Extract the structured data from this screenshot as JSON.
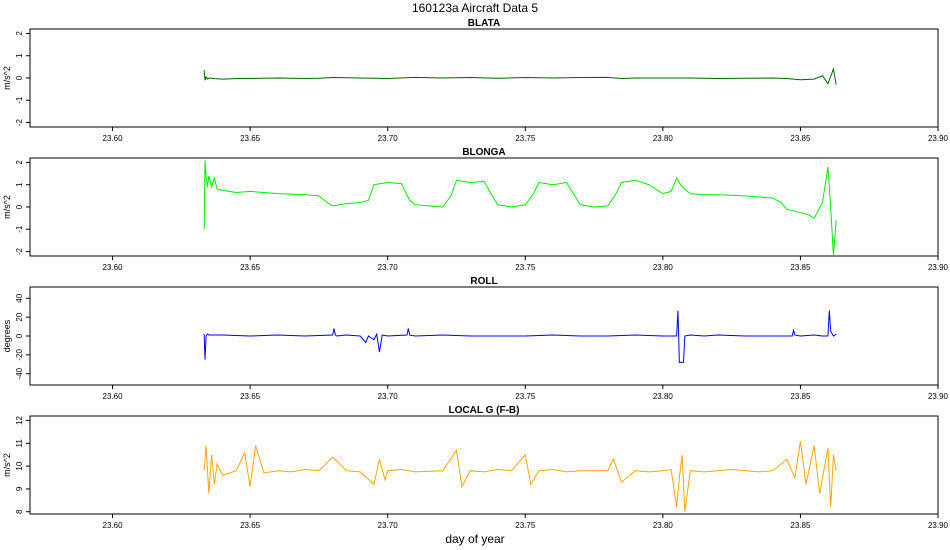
{
  "figure": {
    "title": "160123a   Aircraft Data 5",
    "xlabel": "day of year"
  },
  "chart_data": [
    {
      "type": "line",
      "title": "BLATA",
      "ylabel": "m/s^2",
      "xlim": [
        23.57,
        23.9
      ],
      "ylim": [
        -2.2,
        2.2
      ],
      "xticks": [
        23.6,
        23.65,
        23.7,
        23.75,
        23.8,
        23.85,
        23.9
      ],
      "xtick_labels": [
        "23.60",
        "23.65",
        "23.70",
        "23.75",
        "23.80",
        "23.85",
        "23.90"
      ],
      "yticks": [
        -2,
        -1,
        0,
        1,
        2
      ],
      "ytick_labels": [
        "-2",
        "-1",
        "0",
        "1",
        "2"
      ],
      "color": "#006400",
      "series": [
        {
          "x": [
            23.6333,
            23.6336,
            23.634,
            23.6345,
            23.635,
            23.637,
            23.64,
            23.645,
            23.65,
            23.66,
            23.67,
            23.675,
            23.68,
            23.69,
            23.7,
            23.71,
            23.72,
            23.73,
            23.74,
            23.75,
            23.76,
            23.77,
            23.78,
            23.785,
            23.79,
            23.8,
            23.81,
            23.82,
            23.83,
            23.84,
            23.845,
            23.85,
            23.855,
            23.858,
            23.86,
            23.862,
            23.863
          ],
          "y": [
            0.35,
            -0.1,
            0.05,
            -0.05,
            0.0,
            -0.03,
            -0.05,
            -0.03,
            -0.02,
            0.0,
            -0.02,
            -0.01,
            0.02,
            0.0,
            -0.02,
            0.03,
            0.0,
            0.02,
            -0.01,
            0.02,
            0.0,
            0.02,
            0.03,
            -0.02,
            0.0,
            0.0,
            0.0,
            -0.02,
            -0.01,
            0.0,
            -0.02,
            -0.08,
            -0.05,
            0.1,
            -0.25,
            0.4,
            -0.3
          ]
        }
      ]
    },
    {
      "type": "line",
      "title": "BLONGA",
      "ylabel": "m/s^2",
      "xlim": [
        23.57,
        23.9
      ],
      "ylim": [
        -2.2,
        2.2
      ],
      "xticks": [
        23.6,
        23.65,
        23.7,
        23.75,
        23.8,
        23.85,
        23.9
      ],
      "xtick_labels": [
        "23.60",
        "23.65",
        "23.70",
        "23.75",
        "23.80",
        "23.85",
        "23.90"
      ],
      "yticks": [
        -2,
        -1,
        0,
        1,
        2
      ],
      "ytick_labels": [
        "-2",
        "-1",
        "0",
        "1",
        "2"
      ],
      "color": "#00ee00",
      "series": [
        {
          "x": [
            23.6333,
            23.6336,
            23.634,
            23.6345,
            23.635,
            23.636,
            23.637,
            23.638,
            23.64,
            23.645,
            23.65,
            23.66,
            23.67,
            23.675,
            23.678,
            23.68,
            23.685,
            23.69,
            23.693,
            23.695,
            23.7,
            23.705,
            23.708,
            23.71,
            23.715,
            23.72,
            23.723,
            23.725,
            23.73,
            23.735,
            23.738,
            23.74,
            23.745,
            23.75,
            23.753,
            23.755,
            23.76,
            23.765,
            23.768,
            23.77,
            23.775,
            23.78,
            23.783,
            23.785,
            23.79,
            23.795,
            23.8,
            23.803,
            23.805,
            23.807,
            23.81,
            23.815,
            23.82,
            23.83,
            23.84,
            23.843,
            23.845,
            23.85,
            23.853,
            23.855,
            23.858,
            23.86,
            23.861,
            23.862,
            23.863
          ],
          "y": [
            -1.0,
            2.1,
            1.4,
            0.9,
            1.4,
            0.9,
            1.3,
            0.8,
            0.75,
            0.65,
            0.7,
            0.6,
            0.55,
            0.5,
            0.2,
            0.05,
            0.15,
            0.2,
            0.3,
            1.0,
            1.1,
            1.05,
            0.3,
            0.1,
            0.05,
            0.0,
            0.5,
            1.2,
            1.1,
            1.15,
            0.5,
            0.1,
            0.0,
            0.1,
            0.6,
            1.1,
            1.0,
            1.1,
            0.5,
            0.1,
            0.0,
            0.05,
            0.6,
            1.1,
            1.2,
            1.0,
            0.6,
            0.7,
            1.3,
            0.9,
            0.6,
            0.55,
            0.55,
            0.5,
            0.4,
            0.2,
            -0.1,
            -0.25,
            -0.35,
            -0.5,
            0.2,
            1.8,
            0.0,
            -2.2,
            -0.6
          ]
        }
      ]
    },
    {
      "type": "line",
      "title": "ROLL",
      "ylabel": "degrees",
      "xlim": [
        23.57,
        23.9
      ],
      "ylim": [
        -52,
        52
      ],
      "xticks": [
        23.6,
        23.65,
        23.7,
        23.75,
        23.8,
        23.85,
        23.9
      ],
      "xtick_labels": [
        "23.60",
        "23.65",
        "23.70",
        "23.75",
        "23.80",
        "23.85",
        "23.90"
      ],
      "yticks": [
        -40,
        -20,
        0,
        20,
        40
      ],
      "ytick_labels": [
        "-40",
        "-20",
        "0",
        "20",
        "40"
      ],
      "color": "#0000ff",
      "series": [
        {
          "x": [
            23.6333,
            23.6336,
            23.634,
            23.6345,
            23.635,
            23.64,
            23.65,
            23.66,
            23.67,
            23.68,
            23.6805,
            23.681,
            23.6815,
            23.685,
            23.69,
            23.692,
            23.693,
            23.695,
            23.696,
            23.697,
            23.698,
            23.7,
            23.707,
            23.7075,
            23.708,
            23.71,
            23.72,
            23.73,
            23.75,
            23.76,
            23.77,
            23.78,
            23.79,
            23.8,
            23.805,
            23.8055,
            23.806,
            23.807,
            23.8075,
            23.808,
            23.81,
            23.815,
            23.82,
            23.83,
            23.84,
            23.847,
            23.8475,
            23.848,
            23.85,
            23.855,
            23.858,
            23.86,
            23.8605,
            23.861,
            23.862,
            23.863
          ],
          "y": [
            2,
            -25,
            0,
            2,
            1,
            1,
            0,
            1,
            0,
            1,
            8,
            1,
            0,
            1,
            0,
            -7,
            0,
            -4,
            2,
            -17,
            1,
            0,
            1,
            8,
            1,
            0,
            1,
            0,
            0,
            1,
            0,
            0,
            1,
            0,
            0,
            27,
            -28,
            -28,
            -28,
            0,
            1,
            0,
            1,
            0,
            0,
            0,
            6,
            1,
            0,
            1,
            0,
            0,
            27,
            5,
            0,
            2
          ]
        }
      ]
    },
    {
      "type": "line",
      "title": "LOCAL G (F-B)",
      "ylabel": "m/s^2",
      "xlim": [
        23.57,
        23.9
      ],
      "ylim": [
        7.9,
        12.2
      ],
      "xticks": [
        23.6,
        23.65,
        23.7,
        23.75,
        23.8,
        23.85,
        23.9
      ],
      "xtick_labels": [
        "23.60",
        "23.65",
        "23.70",
        "23.75",
        "23.80",
        "23.85",
        "23.90"
      ],
      "yticks": [
        8,
        9,
        10,
        11,
        12
      ],
      "ytick_labels": [
        "8",
        "9",
        "10",
        "11",
        "12"
      ],
      "color": "#ffa500",
      "series": [
        {
          "x": [
            23.6333,
            23.634,
            23.635,
            23.636,
            23.637,
            23.638,
            23.64,
            23.645,
            23.648,
            23.65,
            23.652,
            23.655,
            23.66,
            23.665,
            23.67,
            23.675,
            23.68,
            23.685,
            23.69,
            23.695,
            23.697,
            23.699,
            23.7,
            23.705,
            23.71,
            23.72,
            23.725,
            23.727,
            23.73,
            23.735,
            23.74,
            23.745,
            23.75,
            23.752,
            23.755,
            23.76,
            23.765,
            23.77,
            23.775,
            23.78,
            23.782,
            23.785,
            23.79,
            23.795,
            23.8,
            23.803,
            23.805,
            23.806,
            23.807,
            23.808,
            23.81,
            23.815,
            23.82,
            23.825,
            23.83,
            23.835,
            23.84,
            23.845,
            23.848,
            23.85,
            23.852,
            23.855,
            23.857,
            23.86,
            23.861,
            23.862,
            23.863
          ],
          "y": [
            9.8,
            10.9,
            8.8,
            10.5,
            9.2,
            10.1,
            9.6,
            9.8,
            10.6,
            9.1,
            10.9,
            9.7,
            9.8,
            9.75,
            9.85,
            9.8,
            10.4,
            9.8,
            9.75,
            9.2,
            10.3,
            9.4,
            9.8,
            9.85,
            9.75,
            9.8,
            10.7,
            9.1,
            9.8,
            9.75,
            9.85,
            9.8,
            10.5,
            9.2,
            9.8,
            9.85,
            9.75,
            9.8,
            9.8,
            9.8,
            10.3,
            9.3,
            9.8,
            9.75,
            9.8,
            9.85,
            8.2,
            9.5,
            10.5,
            8.0,
            9.8,
            9.75,
            9.8,
            9.85,
            9.8,
            9.75,
            9.8,
            10.3,
            9.5,
            11.1,
            9.2,
            10.9,
            8.8,
            10.8,
            8.2,
            10.5,
            9.8
          ]
        }
      ]
    }
  ]
}
